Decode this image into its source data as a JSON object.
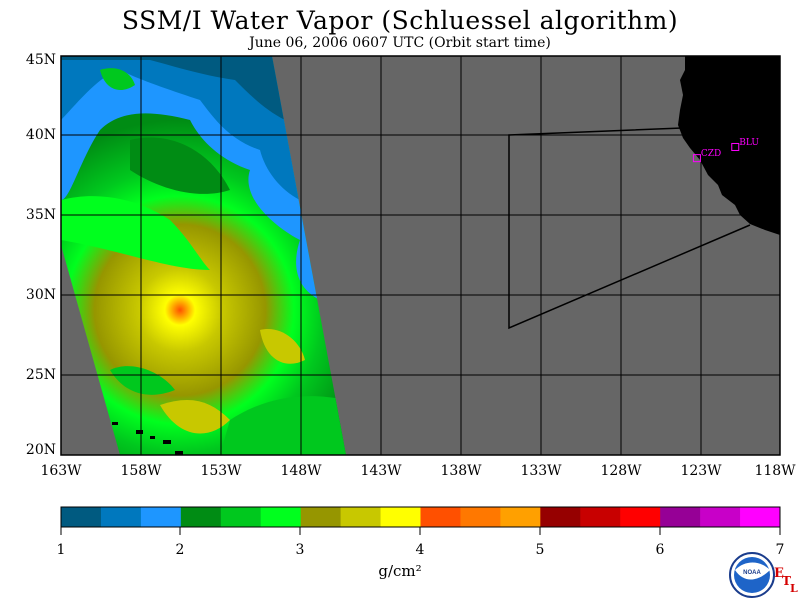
{
  "title": "SSM/I Water Vapor (Schluessel algorithm)",
  "subtitle": "June 06, 2006  0607 UTC  (Orbit start time)",
  "lat_labels": [
    "45N",
    "40N",
    "35N",
    "30N",
    "25N",
    "20N"
  ],
  "lon_labels": [
    "163W",
    "158W",
    "153W",
    "148W",
    "143W",
    "138W",
    "133W",
    "128W",
    "123W",
    "118W"
  ],
  "stations": [
    {
      "label": "CZD",
      "lon": -123.2,
      "lat": 38.6
    },
    {
      "label": "BLU",
      "lon": -120.8,
      "lat": 39.3
    }
  ],
  "colorbar": {
    "ticks": [
      "1",
      "2",
      "3",
      "4",
      "5",
      "6",
      "7"
    ],
    "unit": "g/cm²",
    "colors": [
      "#005a80",
      "#0078be",
      "#1e96ff",
      "#008c14",
      "#00c81e",
      "#00ff1e",
      "#969600",
      "#c8c800",
      "#ffff00",
      "#ff5000",
      "#ff7800",
      "#ffa000",
      "#960000",
      "#c80000",
      "#ff0000",
      "#960096",
      "#c800c8",
      "#ff00ff"
    ]
  },
  "map": {
    "land_color": "#000000",
    "no_data_color": "#666666",
    "grid_color": "#000000"
  },
  "logo": {
    "text": "NOAA",
    "etl_letters": [
      "E",
      "T",
      "L"
    ]
  }
}
